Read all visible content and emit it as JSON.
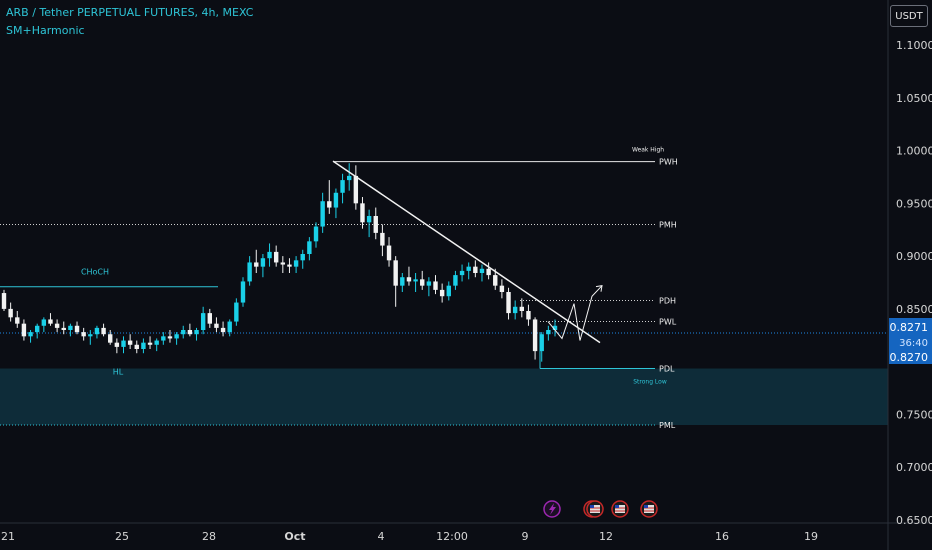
{
  "header": {
    "title": "ARB / Tether PERPETUAL FUTURES, 4h, MEXC",
    "indicator": "SM+Harmonic"
  },
  "currency_button": "USDT",
  "colors": {
    "background": "#0b0d14",
    "accent": "#2ec4d6",
    "candle_up": "#1ad0e8",
    "candle_down": "#f2f2f2",
    "price_tag": "#1565c0",
    "event_red": "#c62828",
    "event_purple": "#9c27b0"
  },
  "chart_data": {
    "type": "candlestick",
    "y_axis": {
      "ylim": [
        0.615,
        1.175
      ],
      "ticks": [
        "1.1000",
        "1.0500",
        "1.0000",
        "0.9500",
        "0.9000",
        "0.8500",
        "0.8000",
        "0.7500",
        "0.7000",
        "0.6500"
      ]
    },
    "x_axis": {
      "ticks": [
        "21",
        "25",
        "28",
        "Oct",
        "4",
        "12:00",
        "9",
        "12",
        "16",
        "19"
      ]
    },
    "candles_ohlc": [
      [
        0.865,
        0.868,
        0.848,
        0.85
      ],
      [
        0.85,
        0.856,
        0.838,
        0.842
      ],
      [
        0.842,
        0.848,
        0.832,
        0.836
      ],
      [
        0.836,
        0.84,
        0.82,
        0.824
      ],
      [
        0.824,
        0.83,
        0.818,
        0.828
      ],
      [
        0.828,
        0.836,
        0.822,
        0.834
      ],
      [
        0.834,
        0.842,
        0.828,
        0.84
      ],
      [
        0.84,
        0.846,
        0.834,
        0.836
      ],
      [
        0.836,
        0.84,
        0.828,
        0.832
      ],
      [
        0.832,
        0.838,
        0.826,
        0.83
      ],
      [
        0.83,
        0.836,
        0.824,
        0.834
      ],
      [
        0.834,
        0.838,
        0.826,
        0.828
      ],
      [
        0.828,
        0.832,
        0.82,
        0.824
      ],
      [
        0.824,
        0.83,
        0.816,
        0.826
      ],
      [
        0.826,
        0.834,
        0.822,
        0.832
      ],
      [
        0.832,
        0.836,
        0.824,
        0.826
      ],
      [
        0.826,
        0.83,
        0.816,
        0.818
      ],
      [
        0.818,
        0.822,
        0.808,
        0.814
      ],
      [
        0.814,
        0.824,
        0.808,
        0.82
      ],
      [
        0.82,
        0.826,
        0.812,
        0.816
      ],
      [
        0.816,
        0.82,
        0.808,
        0.812
      ],
      [
        0.812,
        0.822,
        0.808,
        0.818
      ],
      [
        0.818,
        0.824,
        0.812,
        0.816
      ],
      [
        0.816,
        0.822,
        0.81,
        0.82
      ],
      [
        0.82,
        0.828,
        0.816,
        0.824
      ],
      [
        0.824,
        0.83,
        0.818,
        0.822
      ],
      [
        0.822,
        0.828,
        0.816,
        0.826
      ],
      [
        0.826,
        0.834,
        0.822,
        0.83
      ],
      [
        0.83,
        0.836,
        0.824,
        0.826
      ],
      [
        0.826,
        0.832,
        0.82,
        0.83
      ],
      [
        0.83,
        0.852,
        0.826,
        0.846
      ],
      [
        0.846,
        0.85,
        0.832,
        0.836
      ],
      [
        0.836,
        0.842,
        0.828,
        0.832
      ],
      [
        0.832,
        0.838,
        0.824,
        0.828
      ],
      [
        0.828,
        0.84,
        0.824,
        0.838
      ],
      [
        0.838,
        0.86,
        0.834,
        0.856
      ],
      [
        0.856,
        0.88,
        0.852,
        0.876
      ],
      [
        0.876,
        0.9,
        0.872,
        0.894
      ],
      [
        0.894,
        0.906,
        0.884,
        0.89
      ],
      [
        0.89,
        0.902,
        0.88,
        0.898
      ],
      [
        0.898,
        0.912,
        0.89,
        0.904
      ],
      [
        0.904,
        0.91,
        0.89,
        0.894
      ],
      [
        0.894,
        0.9,
        0.884,
        0.892
      ],
      [
        0.892,
        0.898,
        0.884,
        0.89
      ],
      [
        0.89,
        0.9,
        0.884,
        0.896
      ],
      [
        0.896,
        0.906,
        0.888,
        0.902
      ],
      [
        0.902,
        0.918,
        0.896,
        0.914
      ],
      [
        0.914,
        0.932,
        0.908,
        0.928
      ],
      [
        0.928,
        0.96,
        0.922,
        0.952
      ],
      [
        0.952,
        0.972,
        0.94,
        0.946
      ],
      [
        0.946,
        0.964,
        0.936,
        0.96
      ],
      [
        0.96,
        0.978,
        0.95,
        0.972
      ],
      [
        0.972,
        0.988,
        0.962,
        0.976
      ],
      [
        0.976,
        0.986,
        0.944,
        0.95
      ],
      [
        0.95,
        0.956,
        0.926,
        0.932
      ],
      [
        0.932,
        0.944,
        0.918,
        0.938
      ],
      [
        0.938,
        0.946,
        0.916,
        0.922
      ],
      [
        0.922,
        0.93,
        0.9,
        0.91
      ],
      [
        0.91,
        0.918,
        0.89,
        0.896
      ],
      [
        0.896,
        0.9,
        0.852,
        0.872
      ],
      [
        0.872,
        0.884,
        0.866,
        0.88
      ],
      [
        0.88,
        0.89,
        0.872,
        0.876
      ],
      [
        0.876,
        0.884,
        0.866,
        0.878
      ],
      [
        0.878,
        0.886,
        0.868,
        0.872
      ],
      [
        0.872,
        0.88,
        0.862,
        0.876
      ],
      [
        0.876,
        0.882,
        0.864,
        0.868
      ],
      [
        0.868,
        0.874,
        0.856,
        0.862
      ],
      [
        0.862,
        0.876,
        0.858,
        0.872
      ],
      [
        0.872,
        0.886,
        0.868,
        0.882
      ],
      [
        0.882,
        0.892,
        0.876,
        0.886
      ],
      [
        0.886,
        0.894,
        0.878,
        0.89
      ],
      [
        0.89,
        0.896,
        0.88,
        0.884
      ],
      [
        0.884,
        0.892,
        0.876,
        0.888
      ],
      [
        0.888,
        0.894,
        0.878,
        0.882
      ],
      [
        0.882,
        0.888,
        0.868,
        0.872
      ],
      [
        0.872,
        0.878,
        0.86,
        0.866
      ],
      [
        0.866,
        0.87,
        0.84,
        0.846
      ],
      [
        0.846,
        0.858,
        0.84,
        0.852
      ],
      [
        0.852,
        0.86,
        0.842,
        0.848
      ],
      [
        0.848,
        0.854,
        0.834,
        0.84
      ],
      [
        0.84,
        0.842,
        0.802,
        0.81
      ],
      [
        0.81,
        0.828,
        0.8,
        0.826
      ],
      [
        0.826,
        0.834,
        0.82,
        0.83
      ],
      [
        0.83,
        0.84,
        0.824,
        0.834
      ]
    ],
    "price_levels": [
      {
        "label": "PWH",
        "value": 0.9895,
        "style": "solid"
      },
      {
        "label": "PMH",
        "value": 0.93,
        "style": "dotted"
      },
      {
        "label": "PDH",
        "value": 0.858,
        "style": "dotted"
      },
      {
        "label": "PWL",
        "value": 0.838,
        "style": "dotted"
      },
      {
        "label": "PDL",
        "value": 0.7935,
        "style": "solid"
      },
      {
        "label": "PML",
        "value": 0.74,
        "style": "dotted"
      }
    ],
    "annotations": [
      "Weak High",
      "Strong Low",
      "CHoCH",
      "HL"
    ],
    "choch_level": 0.871,
    "current_price": {
      "value": "0.8271",
      "countdown": "36:40",
      "second_value": "0.8270"
    },
    "trendline": {
      "from": 0.99,
      "to": 0.818
    },
    "projection": [
      0.838,
      0.822,
      0.855,
      0.82,
      0.862,
      0.872
    ]
  }
}
